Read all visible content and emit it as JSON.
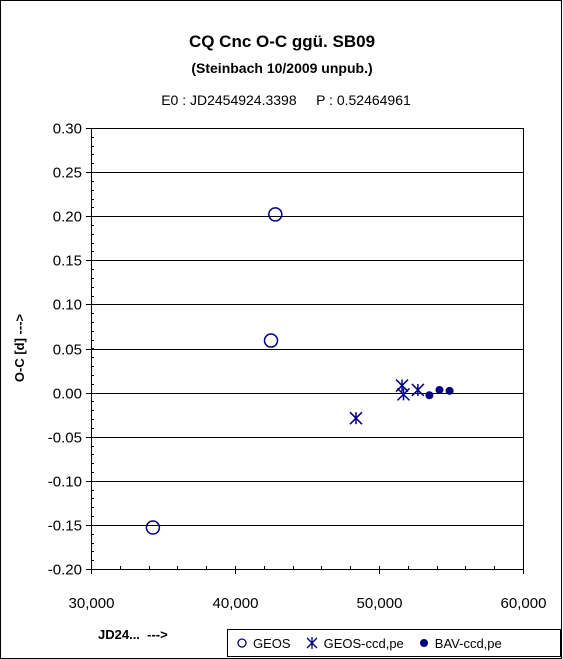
{
  "chart_data": {
    "type": "scatter",
    "title": "CQ Cnc  O-C ggü. SB09",
    "subtitle": "(Steinbach 10/2009 unpub.)",
    "elements_text": "E0 : JD2454924.3398     P : 0.52464961",
    "xlabel": "JD24...  --->",
    "ylabel": "O-C [d]  --->",
    "xlim": [
      30000,
      60000
    ],
    "ylim": [
      -0.2,
      0.3
    ],
    "xticks": [
      "30,000",
      "40,000",
      "50,000",
      "60,000"
    ],
    "yticks": [
      "0.30",
      "0.25",
      "0.20",
      "0.15",
      "0.10",
      "0.05",
      "0.00",
      "-0.05",
      "-0.10",
      "-0.15",
      "-0.20"
    ],
    "grid": "horizontal",
    "legend_position": "bottom-right",
    "series": [
      {
        "name": "GEOS",
        "marker": "open-circle",
        "color": "#000080",
        "points": [
          [
            34300,
            -0.153
          ],
          [
            42500,
            0.059
          ],
          [
            42800,
            0.202
          ]
        ]
      },
      {
        "name": "GEOS-ccd,pe",
        "marker": "asterisk",
        "color": "#000080",
        "points": [
          [
            48400,
            -0.029
          ],
          [
            51600,
            0.008
          ],
          [
            51700,
            -0.002
          ],
          [
            52700,
            0.003
          ]
        ]
      },
      {
        "name": "BAV-ccd,pe",
        "marker": "filled-circle",
        "color": "#000080",
        "points": [
          [
            53500,
            -0.003
          ],
          [
            54200,
            0.003
          ],
          [
            54900,
            0.002
          ]
        ]
      }
    ]
  }
}
